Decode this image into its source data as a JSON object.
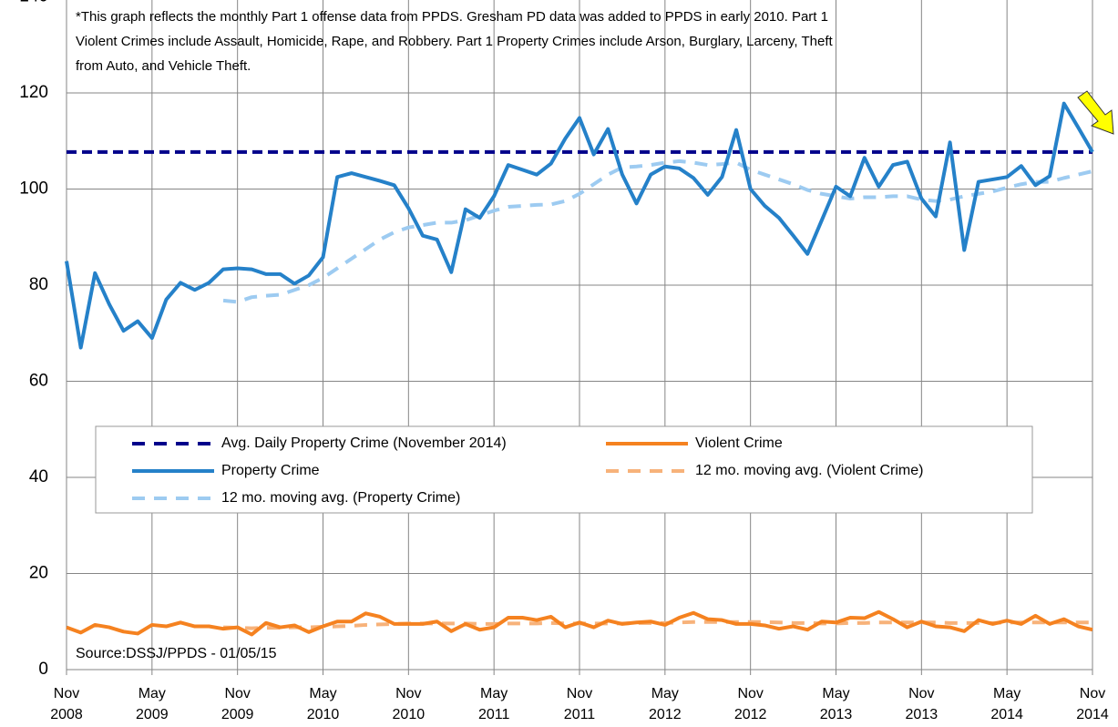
{
  "chart_data": {
    "type": "line",
    "note_lines": [
      "*This graph reflects the monthly Part 1 offense data from PPDS. Gresham PD data was added to PPDS in early 2010.  Part 1",
      "Violent Crimes include Assault, Homicide, Rape, and Robbery.  Part 1 Property Crimes include Arson, Burglary, Larceny, Theft",
      "from Auto, and Vehicle Theft."
    ],
    "source": "Source:DSSJ/PPDS  - 01/05/15",
    "categories": [
      "Nov 2008",
      null,
      null,
      null,
      null,
      null,
      "May 2009",
      null,
      null,
      null,
      null,
      null,
      "Nov 2009",
      null,
      null,
      null,
      null,
      null,
      "May 2010",
      null,
      null,
      null,
      null,
      null,
      "Nov 2010",
      null,
      null,
      null,
      null,
      null,
      "May 2011",
      null,
      null,
      null,
      null,
      null,
      "Nov 2011",
      null,
      null,
      null,
      null,
      null,
      "May 2012",
      null,
      null,
      null,
      null,
      null,
      "Nov 2012",
      null,
      null,
      null,
      null,
      null,
      "May 2013",
      null,
      null,
      null,
      null,
      null,
      "Nov 2013",
      null,
      null,
      null,
      null,
      null,
      "May 2014",
      null,
      null,
      null,
      null,
      null,
      "Nov 2014"
    ],
    "ylim": [
      0,
      140
    ],
    "yticks": [
      0,
      20,
      40,
      60,
      80,
      100,
      120,
      140
    ],
    "grid": true,
    "reference_line": {
      "name": "Avg. Daily Property Crime (November 2014)",
      "color": "#00008b",
      "dashed": true,
      "value": 107.7
    },
    "series": [
      {
        "name": "Violent Crime",
        "color": "#f58220",
        "dashed": false,
        "values": [
          8.8,
          7.7,
          9.3,
          8.8,
          7.9,
          7.5,
          9.3,
          9,
          9.8,
          9,
          9,
          8.5,
          8.8,
          7.3,
          9.7,
          8.8,
          9.2,
          7.8,
          9,
          10,
          10,
          11.7,
          11,
          9.5,
          9.5,
          9.5,
          10,
          8,
          9.5,
          8.3,
          8.8,
          10.8,
          10.8,
          10.3,
          11,
          8.8,
          9.8,
          8.8,
          10.2,
          9.5,
          9.8,
          10,
          9.3,
          10.8,
          11.8,
          10.5,
          10.3,
          9.5,
          9.5,
          9.2,
          8.5,
          9,
          8.3,
          10,
          9.8,
          10.8,
          10.7,
          12,
          10.5,
          8.8,
          10,
          9,
          8.8,
          8,
          10.3,
          9.5,
          10.2,
          9.5,
          11.2,
          9.5,
          10.5,
          9,
          8.3
        ]
      },
      {
        "name": "Property Crime",
        "color": "#2581c9",
        "dashed": false,
        "values": [
          85,
          67,
          82.5,
          76,
          70.5,
          72.5,
          69,
          77,
          80.5,
          79,
          80.5,
          83.3,
          83.5,
          83.3,
          82.3,
          82.3,
          80.3,
          82,
          85.8,
          102.5,
          103.3,
          102.5,
          101.7,
          100.8,
          96,
          90.3,
          89.5,
          82.7,
          95.8,
          94,
          98.5,
          105,
          104,
          103,
          105.3,
          110.5,
          114.8,
          107.2,
          112.5,
          103,
          97,
          103,
          104.7,
          104.3,
          102.3,
          98.8,
          102.5,
          112.3,
          100,
          96.5,
          94,
          90.3,
          86.5,
          93.5,
          100.5,
          98.5,
          106.5,
          100.5,
          105,
          105.7,
          98,
          94.3,
          109.7,
          87.3,
          101.5,
          102,
          102.5,
          104.8,
          100.8,
          102.7,
          117.8,
          112.8,
          107.7
        ]
      },
      {
        "name": "12 mo. moving avg. (Violent Crime)",
        "color": "#f7b27a",
        "dashed": true,
        "values": [
          null,
          null,
          null,
          null,
          null,
          null,
          null,
          null,
          null,
          null,
          null,
          8.8,
          8.7,
          8.6,
          8.7,
          8.7,
          8.8,
          8.8,
          8.9,
          9,
          9.1,
          9.3,
          9.4,
          9.5,
          9.6,
          9.6,
          9.6,
          9.6,
          9.6,
          9.5,
          9.5,
          9.6,
          9.6,
          9.6,
          9.7,
          9.6,
          9.6,
          9.6,
          9.6,
          9.6,
          9.7,
          9.7,
          9.7,
          9.8,
          9.9,
          9.9,
          9.9,
          9.9,
          9.9,
          9.9,
          9.8,
          9.7,
          9.7,
          9.6,
          9.6,
          9.7,
          9.7,
          9.8,
          9.8,
          9.8,
          9.8,
          9.8,
          9.7,
          9.7,
          9.7,
          9.7,
          9.8,
          9.8,
          9.8,
          9.8,
          9.8,
          9.8,
          9.8
        ]
      },
      {
        "name": "12 mo. moving avg. (Property Crime)",
        "color": "#9dcbf1",
        "dashed": true,
        "values": [
          null,
          null,
          null,
          null,
          null,
          null,
          null,
          null,
          null,
          null,
          null,
          76.8,
          76.5,
          77.5,
          77.8,
          78,
          79,
          80,
          81.5,
          83.5,
          85.5,
          87.5,
          89.5,
          91,
          92,
          92.5,
          93,
          93,
          93.5,
          94.5,
          95.5,
          96.3,
          96.5,
          96.7,
          96.8,
          97.5,
          99,
          101,
          103,
          104.5,
          104.7,
          105,
          105.5,
          105.8,
          105.5,
          105,
          105.2,
          105.5,
          104,
          103,
          102,
          101,
          99.8,
          99,
          98.5,
          98,
          98.3,
          98.3,
          98.5,
          98.5,
          97.8,
          97.5,
          97.8,
          98.5,
          99,
          99.5,
          100.3,
          101,
          101.5,
          101.5,
          102.3,
          103,
          103.7
        ]
      }
    ]
  }
}
